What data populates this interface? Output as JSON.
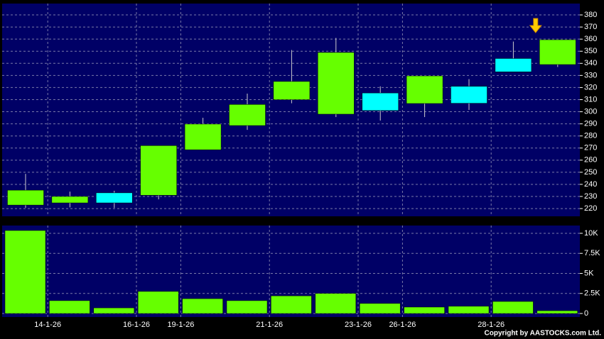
{
  "chart_data": [
    {
      "type": "candlestick",
      "open": [
        222.9,
        224.7,
        233,
        231,
        268.6,
        288.6,
        310,
        298,
        315.5,
        306.8,
        321,
        344,
        339
      ],
      "high": [
        248.7,
        234,
        234.7,
        272,
        295,
        315,
        351,
        361,
        321,
        329.6,
        327,
        358,
        359.5
      ],
      "low": [
        220.6,
        221,
        220.6,
        227.6,
        268.6,
        285,
        307,
        295.6,
        292.7,
        295.6,
        301.5,
        333,
        337
      ],
      "close": [
        235.2,
        230,
        224.7,
        272,
        289.8,
        306,
        325,
        349,
        301,
        329.6,
        307,
        333,
        359.5
      ],
      "up_color": "#66ff00",
      "down_color": "#00ffff",
      "ylim": [
        213.6,
        389.4
      ],
      "yticks": [
        220,
        230,
        240,
        250,
        260,
        270,
        280,
        290,
        300,
        310,
        320,
        330,
        340,
        350,
        360,
        370,
        380
      ],
      "grid": true
    },
    {
      "type": "bar",
      "categories": [
        null,
        "14-1-26",
        null,
        "16-1-26",
        "19-1-26",
        null,
        "21-1-26",
        null,
        "23-1-26",
        "26-1-26",
        null,
        "28-1-26",
        null
      ],
      "values": [
        10350,
        1600,
        700,
        2750,
        1850,
        1600,
        2200,
        2500,
        1250,
        800,
        900,
        1500,
        350
      ],
      "color": "#66ff00",
      "ylim": [
        -440,
        10970
      ],
      "yticks": [
        0,
        {
          "value": 2500,
          "label": "2.5K"
        },
        {
          "value": 5000,
          "label": "5K"
        },
        {
          "value": 7500,
          "label": "7.5K"
        },
        {
          "value": 10000,
          "label": "10K"
        }
      ],
      "grid": true
    }
  ],
  "copyright": "Copyright by AASTOCKS.com Ltd."
}
